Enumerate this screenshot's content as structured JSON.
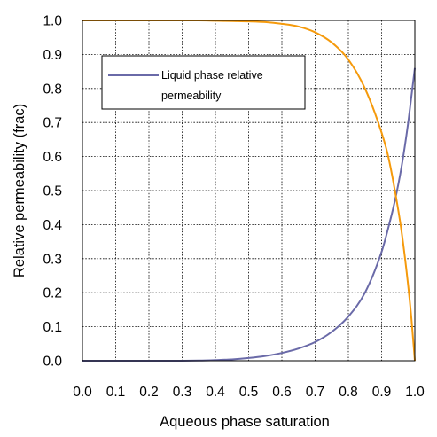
{
  "chart_data": {
    "type": "line",
    "xlabel": "Aqueous phase saturation",
    "ylabel": "Relative permeability (frac)",
    "xlim": [
      0,
      1
    ],
    "ylim": [
      0,
      1
    ],
    "x_ticks": [
      "0.0",
      "0.1",
      "0.2",
      "0.3",
      "0.4",
      "0.5",
      "0.6",
      "0.7",
      "0.8",
      "0.9",
      "1.0"
    ],
    "y_ticks": [
      "0.0",
      "0.1",
      "0.2",
      "0.3",
      "0.4",
      "0.5",
      "0.6",
      "0.7",
      "0.8",
      "0.9",
      "1.0"
    ],
    "grid": true,
    "legend_position": "upper-left",
    "series": [
      {
        "name": "Liquid phase relative permeability",
        "color": "#6a6aa8",
        "x": [
          0.0,
          0.3,
          0.35,
          0.4,
          0.45,
          0.5,
          0.55,
          0.6,
          0.65,
          0.7,
          0.75,
          0.8,
          0.85,
          0.9,
          0.92,
          0.94,
          0.96,
          0.98,
          0.99,
          1.0
        ],
        "y": [
          0.0,
          0.0,
          0.0005,
          0.002,
          0.004,
          0.008,
          0.014,
          0.023,
          0.036,
          0.055,
          0.085,
          0.13,
          0.2,
          0.32,
          0.39,
          0.47,
          0.57,
          0.7,
          0.78,
          0.86
        ]
      },
      {
        "name": "",
        "color": "#f59a0c",
        "x": [
          0.0,
          0.3,
          0.35,
          0.4,
          0.45,
          0.5,
          0.55,
          0.6,
          0.65,
          0.7,
          0.75,
          0.8,
          0.85,
          0.9,
          0.92,
          0.94,
          0.96,
          0.98,
          0.99,
          1.0
        ],
        "y": [
          1.0,
          1.0,
          1.0,
          0.999,
          0.998,
          0.997,
          0.995,
          0.99,
          0.982,
          0.965,
          0.935,
          0.885,
          0.8,
          0.67,
          0.6,
          0.5,
          0.38,
          0.22,
          0.12,
          0.0
        ]
      }
    ]
  }
}
